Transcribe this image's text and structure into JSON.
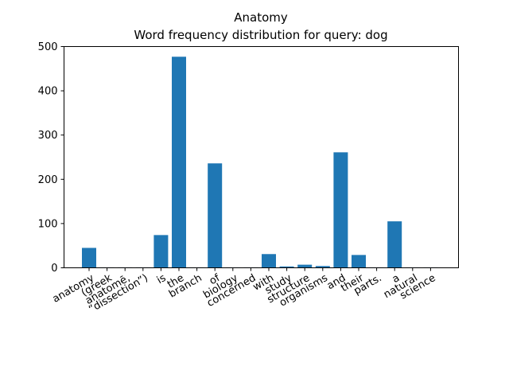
{
  "chart_data": {
    "type": "bar",
    "title": "Anatomy",
    "subtitle": "Word frequency distribution for query: dog",
    "xlabel": "",
    "ylabel": "",
    "ylim": [
      0,
      500
    ],
    "yticks": [
      "0",
      "100",
      "200",
      "300",
      "400",
      "500"
    ],
    "grid": false,
    "bar_color": "#1f77b4",
    "categories": [
      "anatomy",
      "(greek",
      "anatomē,",
      "“dissection”)",
      "is",
      "the",
      "branch",
      "of",
      "biology",
      "concerned",
      "with",
      "study",
      "structure",
      "organisms",
      "and",
      "their",
      "parts.",
      "a",
      "natural",
      "science"
    ],
    "values": [
      45,
      1,
      1,
      1,
      74,
      477,
      1,
      236,
      1,
      1,
      31,
      3,
      7,
      4,
      261,
      29,
      1,
      105,
      1,
      1
    ]
  }
}
